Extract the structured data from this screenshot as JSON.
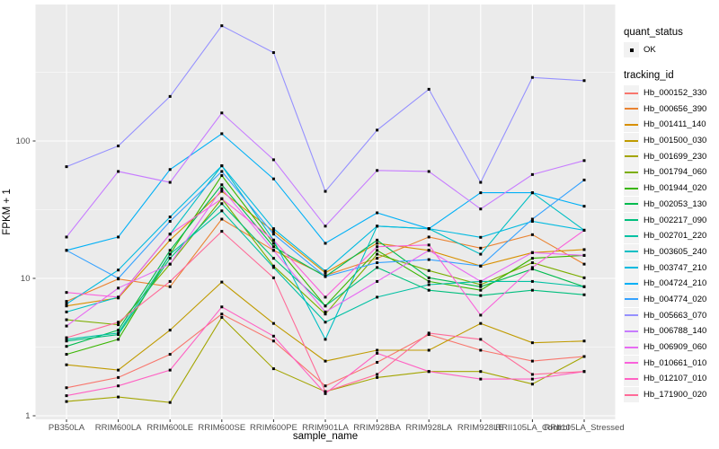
{
  "figure": {
    "y_axis": {
      "title": "FPKM + 1"
    },
    "x_axis": {
      "title": "sample_name"
    },
    "legend": {
      "quant_status_title": "quant_status",
      "quant_status_item": "OK",
      "tracking_id_title": "tracking_id"
    },
    "colors": {
      "panel_bg": "#EBEBEB",
      "grid": "#FFFFFF",
      "key_bg": "#F2F2F2",
      "tick_text": "#4D4D4D",
      "tick_mark": "#333333",
      "point": "#000000"
    }
  },
  "chart_data": {
    "type": "line",
    "title": "",
    "xlabel": "sample_name",
    "ylabel": "FPKM + 1",
    "y_scale": "log10",
    "y_ticks": [
      1,
      10,
      100
    ],
    "ylim": [
      0.94,
      950
    ],
    "grid": true,
    "legend_position": "right",
    "point_marker": "black-square (quant_status = OK)",
    "categories": [
      "PB350LA",
      "RRIM600LA",
      "RRIM600LE",
      "RRIM600SE",
      "RRIM600PE",
      "RRIM901LA",
      "RRIM928BA",
      "RRIM928LA",
      "RRIM928LE",
      "RRII105LA_Control",
      "RRII105LA_Stressed"
    ],
    "series": [
      {
        "tracking_id": "Hb_000152_330",
        "color": "#F8766D",
        "values": [
          1.6,
          1.9,
          2.8,
          5.5,
          3.5,
          1.65,
          2.45,
          3.9,
          3.0,
          2.5,
          2.7
        ]
      },
      {
        "tracking_id": "Hb_000656_390",
        "color": "#EA8331",
        "values": [
          6.8,
          9.9,
          8.7,
          27,
          16,
          10.5,
          14,
          20,
          16.6,
          20.8,
          12.7
        ]
      },
      {
        "tracking_id": "Hb_001411_140",
        "color": "#D89000",
        "values": [
          6.3,
          7.2,
          19,
          43,
          22,
          11,
          18,
          16,
          12.3,
          15.4,
          16.2
        ]
      },
      {
        "tracking_id": "Hb_001500_030",
        "color": "#C09B00",
        "values": [
          2.35,
          2.15,
          4.2,
          9.4,
          4.7,
          2.5,
          3.0,
          3.0,
          4.7,
          3.4,
          3.5
        ]
      },
      {
        "tracking_id": "Hb_001699_230",
        "color": "#A3A500",
        "values": [
          1.27,
          1.37,
          1.25,
          5.2,
          2.2,
          1.5,
          1.9,
          2.1,
          2.1,
          1.7,
          2.7
        ]
      },
      {
        "tracking_id": "Hb_001794_060",
        "color": "#7CAE00",
        "values": [
          5.0,
          4.6,
          12.7,
          38,
          12.3,
          5.5,
          15,
          11.4,
          9.0,
          13,
          10.1
        ]
      },
      {
        "tracking_id": "Hb_001944_020",
        "color": "#39B600",
        "values": [
          2.8,
          3.6,
          15,
          56,
          18,
          6.3,
          16,
          9.5,
          8.2,
          14,
          14.7
        ]
      },
      {
        "tracking_id": "Hb_002053_130",
        "color": "#00BB4E",
        "values": [
          3.2,
          4.2,
          16,
          48,
          17,
          10.3,
          19,
          10.1,
          8.7,
          11.7,
          8.7
        ]
      },
      {
        "tracking_id": "Hb_002217_090",
        "color": "#00BF7D",
        "values": [
          3.5,
          3.9,
          14,
          35,
          14,
          6.3,
          12,
          8.2,
          7.5,
          8.2,
          7.6
        ]
      },
      {
        "tracking_id": "Hb_002701_220",
        "color": "#00C1A3",
        "values": [
          3.6,
          4.0,
          15,
          31,
          12,
          4.8,
          7.3,
          9.0,
          9.5,
          9.5,
          8.7
        ]
      },
      {
        "tracking_id": "Hb_003605_240",
        "color": "#00BFC4",
        "values": [
          5.7,
          7.3,
          21,
          66,
          19,
          3.6,
          24,
          23,
          15,
          42,
          22.4
        ]
      },
      {
        "tracking_id": "Hb_003747_210",
        "color": "#00BAE0",
        "values": [
          6.5,
          11.5,
          28,
          66,
          23,
          11.3,
          24,
          23,
          19.9,
          26,
          22.4
        ]
      },
      {
        "tracking_id": "Hb_004724_210",
        "color": "#00B0F6",
        "values": [
          16,
          20,
          62,
          113,
          53,
          18,
          30,
          23,
          42,
          42,
          33.5
        ]
      },
      {
        "tracking_id": "Hb_004774_020",
        "color": "#35A2FF",
        "values": [
          16,
          10,
          26,
          60,
          21,
          10.3,
          13,
          13.7,
          12.3,
          27,
          52
        ]
      },
      {
        "tracking_id": "Hb_005663_070",
        "color": "#9590FF",
        "values": [
          65,
          92,
          211,
          690,
          440,
          43,
          120,
          238,
          50,
          290,
          275
        ]
      },
      {
        "tracking_id": "Hb_006788_140",
        "color": "#C77CFF",
        "values": [
          20,
          60,
          50,
          160,
          73,
          24,
          61,
          60,
          32,
          57,
          72
        ]
      },
      {
        "tracking_id": "Hb_006909_060",
        "color": "#E76BF3",
        "values": [
          4.5,
          8.5,
          12.7,
          45,
          16,
          5.7,
          9.5,
          16,
          9.5,
          15.4,
          14.7
        ]
      },
      {
        "tracking_id": "Hb_010661_010",
        "color": "#FA62DB",
        "values": [
          7.9,
          7.3,
          21,
          38,
          19,
          7.3,
          17,
          17.5,
          5.4,
          12,
          22.4
        ]
      },
      {
        "tracking_id": "Hb_012107_010",
        "color": "#FF61C3",
        "values": [
          1.4,
          1.65,
          2.15,
          6.2,
          3.8,
          1.45,
          2.85,
          2.1,
          1.85,
          1.85,
          2.1
        ]
      },
      {
        "tracking_id": "Hb_171900_020",
        "color": "#FF6A98",
        "values": [
          3.7,
          4.8,
          9.5,
          22,
          10.1,
          1.5,
          2.0,
          4.0,
          3.6,
          2.0,
          2.1
        ]
      }
    ]
  }
}
